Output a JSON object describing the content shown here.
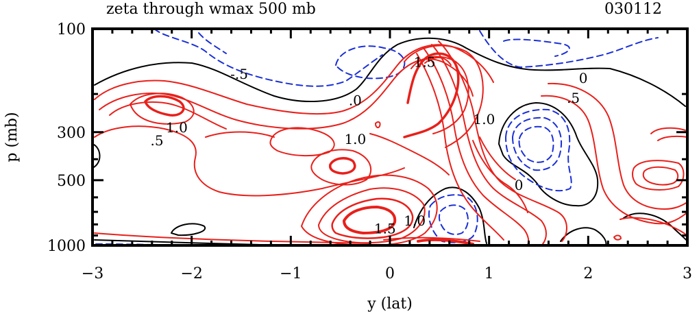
{
  "chart_data": {
    "type": "contour",
    "title": "zeta through wmax 500 mb",
    "date_label": "030112",
    "xlabel": "y (lat)",
    "ylabel": "p (mb)",
    "xlim": [
      -3,
      3
    ],
    "ylim": [
      1000,
      100
    ],
    "x_ticks": [
      -3,
      -2,
      -1,
      0,
      1,
      2,
      3
    ],
    "x_tick_labels": [
      "−3",
      "−2",
      "−1",
      "0",
      "1",
      "2",
      "3"
    ],
    "y_ticks": [
      100,
      300,
      500,
      1000
    ],
    "y_tick_labels": [
      "100",
      "300",
      "500",
      "1000"
    ],
    "contour_colors": {
      "positive": "#e8201b",
      "zero": "#000000",
      "negative": "#1a2fd6"
    },
    "contour_labels": [
      {
        "text": "-.5",
        "x": -1.52,
        "y": 170
      },
      {
        "text": ".0",
        "x": -0.35,
        "y": 225
      },
      {
        "text": "1.5",
        "x": 0.35,
        "y": 150
      },
      {
        "text": "0",
        "x": 1.95,
        "y": 178
      },
      {
        "text": ".5",
        "x": 1.85,
        "y": 220
      },
      {
        "text": "1.0",
        "x": 0.95,
        "y": 275
      },
      {
        "text": "1.0",
        "x": -2.15,
        "y": 300
      },
      {
        "text": ".5",
        "x": -2.35,
        "y": 345
      },
      {
        "text": "1.0",
        "x": -0.35,
        "y": 340
      },
      {
        "text": "0",
        "x": 1.3,
        "y": 555
      },
      {
        "text": "1.0",
        "x": 0.25,
        "y": 810
      },
      {
        "text": "1.5",
        "x": -0.05,
        "y": 880
      }
    ]
  }
}
